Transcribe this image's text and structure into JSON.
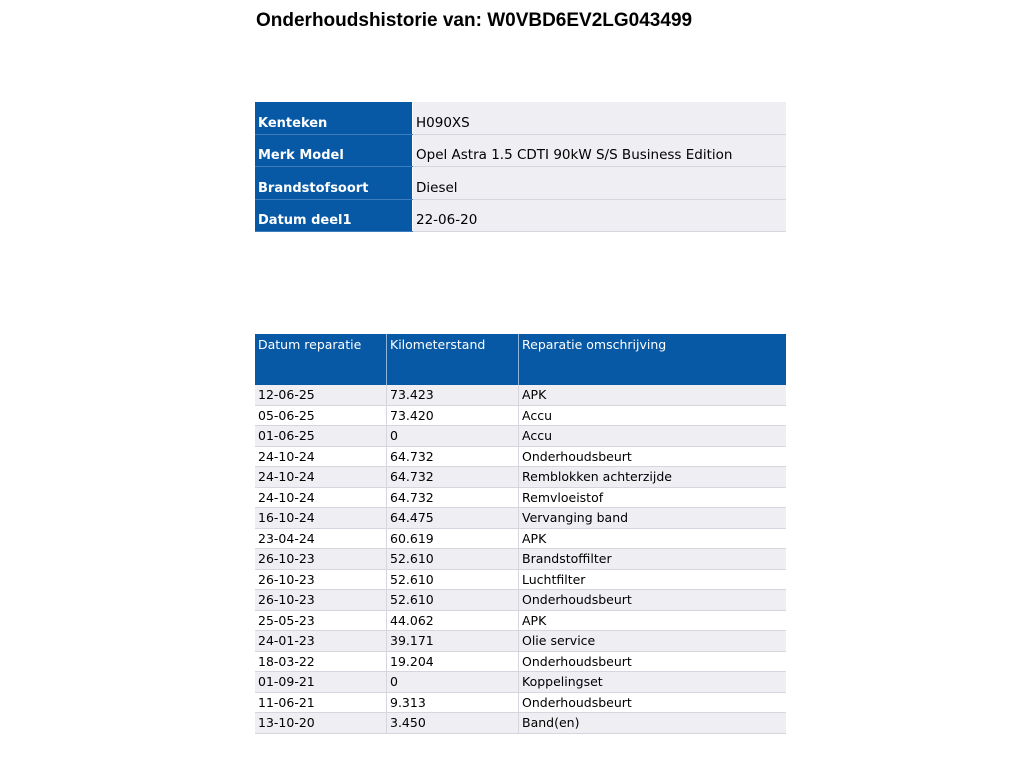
{
  "title": "Onderhoudshistorie van: W0VBD6EV2LG043499",
  "vehicle": [
    {
      "label": "Kenteken",
      "value": "H090XS"
    },
    {
      "label": "Merk Model",
      "value": "Opel Astra 1.5 CDTI 90kW S/S Business Edition"
    },
    {
      "label": "Brandstofsoort",
      "value": "Diesel"
    },
    {
      "label": "Datum deel1",
      "value": "22-06-20"
    }
  ],
  "history": {
    "headers": [
      "Datum reparatie",
      "Kilometerstand",
      "Reparatie omschrijving"
    ],
    "rows": [
      [
        "12-06-25",
        "73.423",
        "APK"
      ],
      [
        "05-06-25",
        "73.420",
        "Accu"
      ],
      [
        "01-06-25",
        "0",
        "Accu"
      ],
      [
        "24-10-24",
        "64.732",
        "Onderhoudsbeurt"
      ],
      [
        "24-10-24",
        "64.732",
        "Remblokken achterzijde"
      ],
      [
        "24-10-24",
        "64.732",
        "Remvloeistof"
      ],
      [
        "16-10-24",
        "64.475",
        "Vervanging band"
      ],
      [
        "23-04-24",
        "60.619",
        "APK"
      ],
      [
        "26-10-23",
        "52.610",
        "Brandstoffilter"
      ],
      [
        "26-10-23",
        "52.610",
        "Luchtfilter"
      ],
      [
        "26-10-23",
        "52.610",
        "Onderhoudsbeurt"
      ],
      [
        "25-05-23",
        "44.062",
        "APK"
      ],
      [
        "24-01-23",
        "39.171",
        "Olie service"
      ],
      [
        "18-03-22",
        "19.204",
        "Onderhoudsbeurt"
      ],
      [
        "01-09-21",
        "0",
        "Koppelingset"
      ],
      [
        "11-06-21",
        "9.313",
        "Onderhoudsbeurt"
      ],
      [
        "13-10-20",
        "3.450",
        "Band(en)"
      ]
    ]
  }
}
